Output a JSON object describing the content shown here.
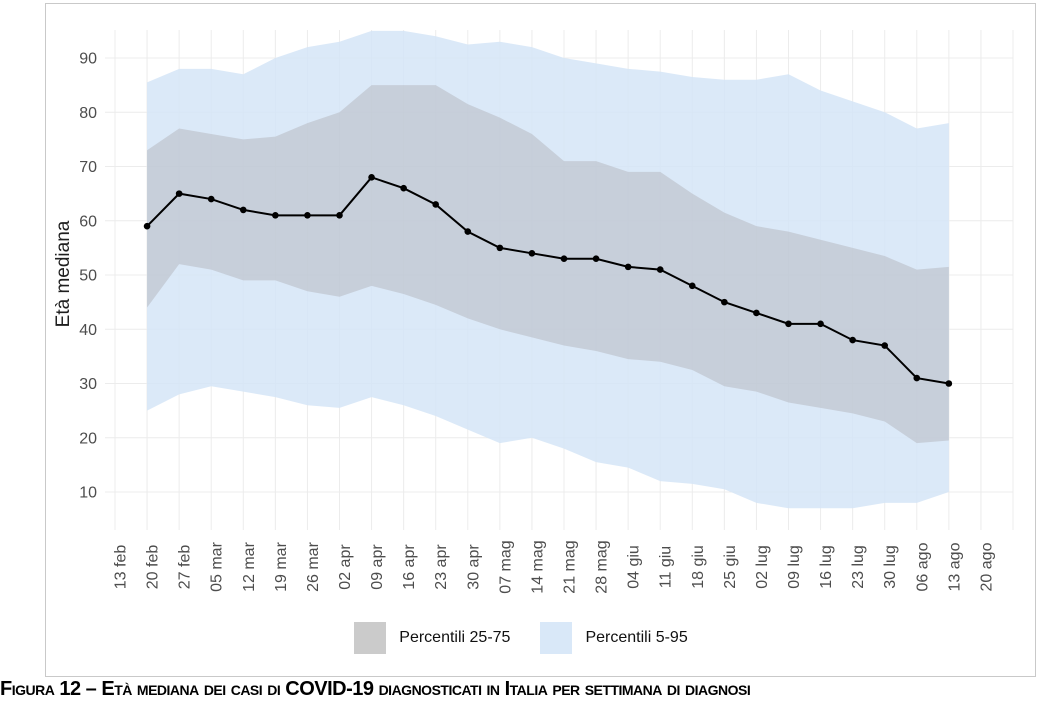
{
  "figure": {
    "caption": "Figura 12 – Età mediana dei casi di COVID-19 diagnosticati in Italia per settimana di diagnosi"
  },
  "chart_data": {
    "type": "line",
    "title": "",
    "xlabel": "",
    "ylabel": "Età mediana",
    "ylim": [
      3,
      97
    ],
    "yticks": [
      10,
      20,
      30,
      40,
      50,
      60,
      70,
      80,
      90
    ],
    "grid": true,
    "grid_color": "#ececec",
    "tick_label_color": "#4d4d4d",
    "x_tick_labels": [
      "13 feb",
      "20 feb",
      "27 feb",
      "05 mar",
      "12 mar",
      "19 mar",
      "26 mar",
      "02 apr",
      "09 apr",
      "16 apr",
      "23 apr",
      "30 apr",
      "07 mag",
      "14 mag",
      "21 mag",
      "28 mag",
      "04 giu",
      "11 giu",
      "18 giu",
      "25 giu",
      "02 lug",
      "09 lug",
      "16 lug",
      "23 lug",
      "30 lug",
      "06 ago",
      "13 ago",
      "20 ago"
    ],
    "data_weeks": [
      "20 feb",
      "27 feb",
      "05 mar",
      "12 mar",
      "19 mar",
      "26 mar",
      "02 apr",
      "09 apr",
      "16 apr",
      "23 apr",
      "30 apr",
      "07 mag",
      "14 mag",
      "21 mag",
      "28 mag",
      "04 giu",
      "11 giu",
      "18 giu",
      "25 giu",
      "02 lug",
      "09 lug",
      "16 lug",
      "23 lug",
      "30 lug",
      "06 ago",
      "13 ago"
    ],
    "data_start_tick_index": 1,
    "series": [
      {
        "name": "Età mediana",
        "type": "line",
        "color": "#000000",
        "values": [
          59,
          65,
          64,
          62,
          61,
          61,
          61,
          68,
          66,
          63,
          58,
          55,
          54,
          53,
          53,
          51.5,
          51,
          48,
          45,
          43,
          41,
          41,
          38,
          37,
          31,
          30
        ]
      },
      {
        "name": "Percentili 25-75",
        "type": "band",
        "fill": "rgba(176,176,181,0.45)",
        "legend_color": "#cbcbcb",
        "lower": [
          44,
          52,
          51,
          49,
          49,
          47,
          46,
          48,
          46.5,
          44.5,
          42,
          40,
          38.5,
          37,
          36,
          34.5,
          34,
          32.5,
          29.5,
          28.5,
          26.5,
          25.5,
          24.5,
          23,
          19,
          19.5
        ],
        "upper": [
          73,
          77,
          76,
          75,
          75.5,
          78,
          80,
          85,
          85,
          85,
          81.5,
          79,
          76,
          71,
          71,
          69,
          69,
          65,
          61.5,
          59,
          58,
          56.5,
          55,
          53.5,
          51,
          51.5
        ]
      },
      {
        "name": "Percentili 5-95",
        "type": "band",
        "fill": "rgba(213,229,247,0.85)",
        "legend_color": "#d9e8f8",
        "lower": [
          25,
          28,
          29.5,
          28.5,
          27.5,
          26,
          25.5,
          27.5,
          26,
          24,
          21.5,
          19,
          20,
          18,
          15.5,
          14.5,
          12,
          11.5,
          10.5,
          8,
          7,
          7,
          7,
          8,
          8,
          10
        ],
        "upper": [
          85.5,
          88,
          88,
          87,
          90,
          92,
          93,
          95,
          95,
          94,
          92.5,
          93,
          92,
          90,
          89,
          88,
          87.5,
          86.5,
          86,
          86,
          87,
          84,
          82,
          80,
          77,
          78
        ]
      }
    ],
    "legend": [
      {
        "label": "Percentili 25-75",
        "color": "#cbcbcb"
      },
      {
        "label": "Percentili 5-95",
        "color": "#d9e8f8"
      }
    ],
    "legend_position": "bottom"
  }
}
